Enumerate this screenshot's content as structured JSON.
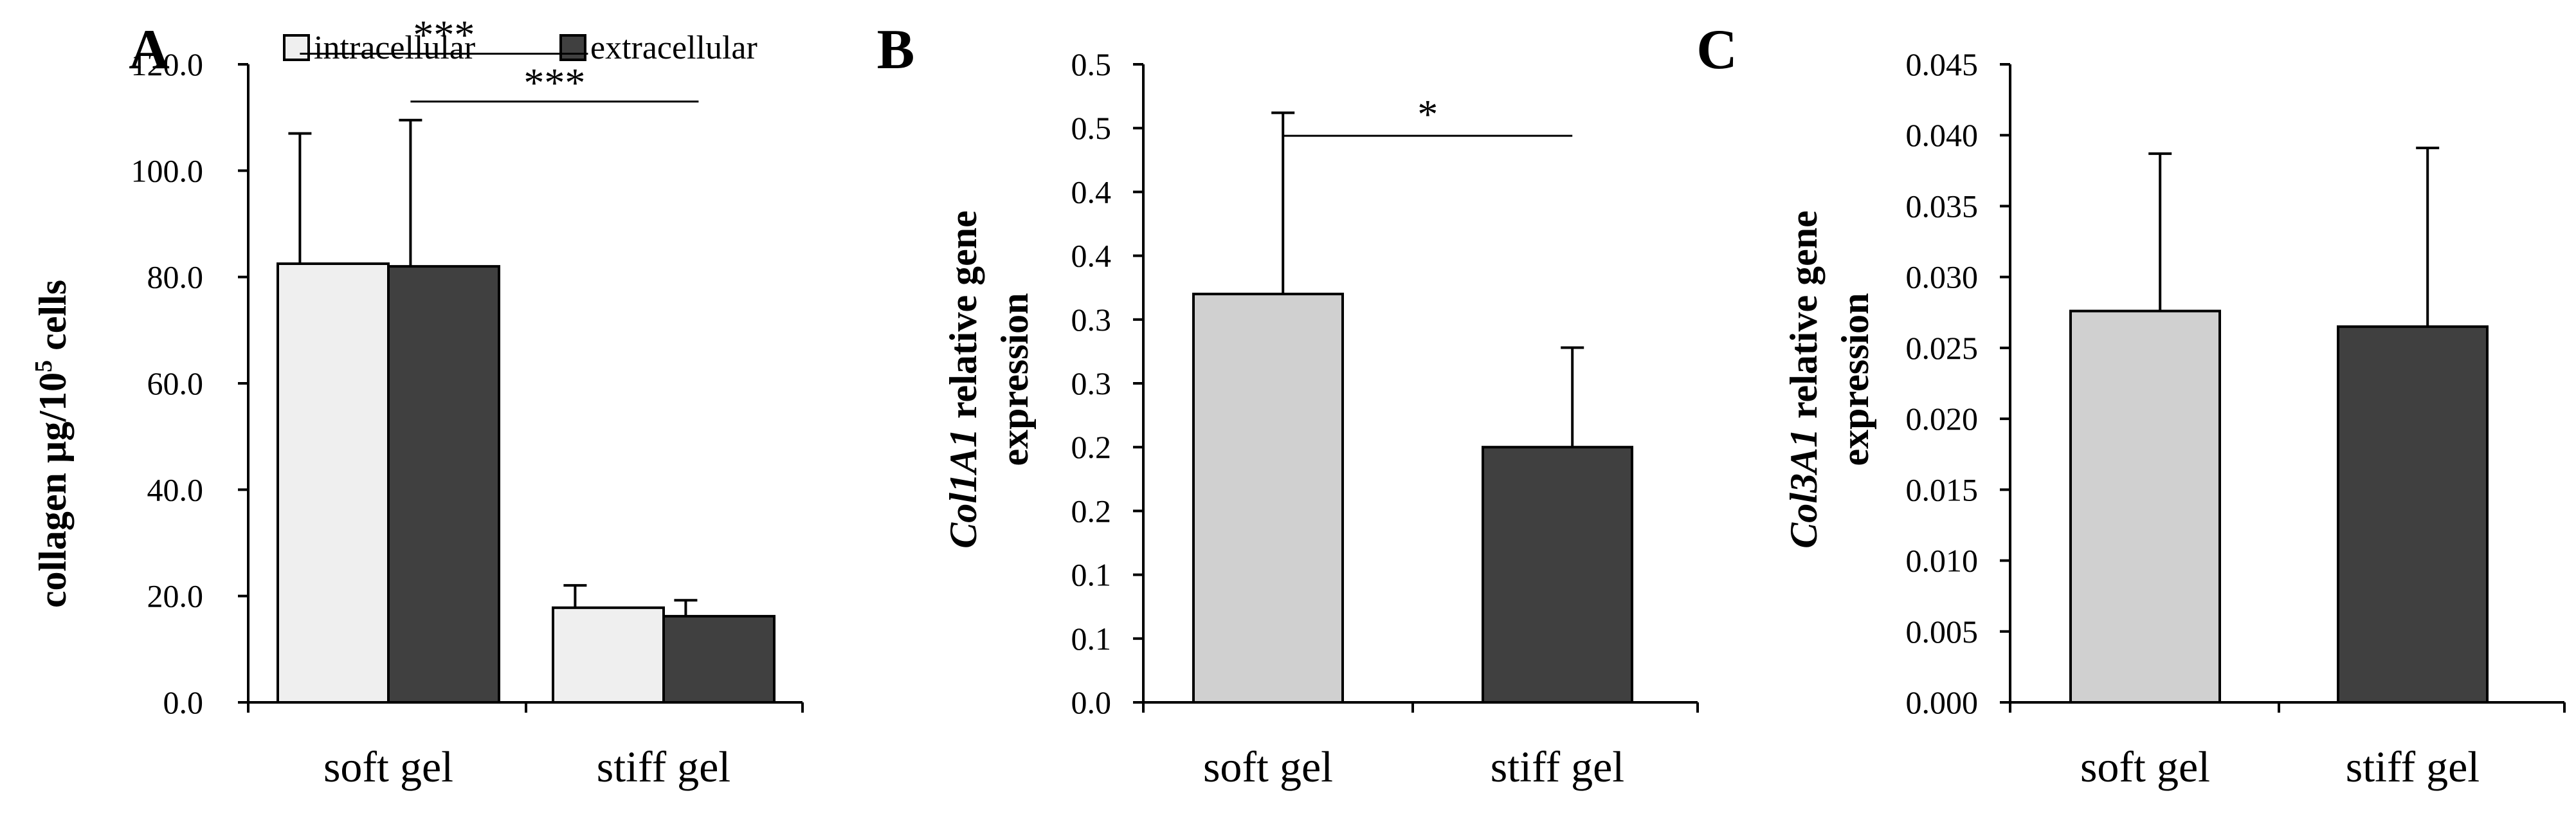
{
  "colors": {
    "intracellular": "#efefef",
    "extracellular": "#404040",
    "soft_bar": "#d0d0d0",
    "stiff_bar": "#404040"
  },
  "chart_data": [
    {
      "panel_label": "A",
      "type": "bar",
      "categories": [
        "soft gel",
        "stiff gel"
      ],
      "series": [
        {
          "name": "intracellular",
          "values": [
            82.5,
            17.8
          ],
          "errors": [
            24.5,
            4.2
          ]
        },
        {
          "name": "extracellular",
          "values": [
            82.0,
            16.2
          ],
          "errors": [
            27.5,
            3.0
          ]
        }
      ],
      "ylabel_main": "collagen µg/10",
      "ylabel_sup": "5",
      "ylabel_tail": " cells",
      "ylim": [
        0,
        120
      ],
      "ticks": [
        "0.0",
        "20.0",
        "40.0",
        "60.0",
        "80.0",
        "100.0",
        "120.0"
      ],
      "tick_values": [
        0,
        20,
        40,
        60,
        80,
        100,
        120
      ],
      "legend": [
        "intracellular",
        "extracellular"
      ],
      "significance": [
        {
          "label": "***",
          "from_series": 0,
          "to_series": 0,
          "y": 122
        },
        {
          "label": "***",
          "from_series": 1,
          "to_series": 1,
          "y": 113
        }
      ]
    },
    {
      "panel_label": "B",
      "type": "bar",
      "categories": [
        "soft gel",
        "stiff gel"
      ],
      "values": [
        0.32,
        0.2
      ],
      "errors": [
        0.142,
        0.078
      ],
      "ylabel_italic": "Col1A1",
      "ylabel_rest": " relative gene",
      "ylabel_line2": "expression",
      "ylim": [
        0,
        0.5
      ],
      "ticks": [
        "0.0",
        "0.1",
        "0.1",
        "0.2",
        "0.2",
        "0.3",
        "0.3",
        "0.4",
        "0.4",
        "0.5",
        "0.5"
      ],
      "tick_values": [
        0,
        0.05,
        0.1,
        0.15,
        0.2,
        0.25,
        0.3,
        0.35,
        0.4,
        0.45,
        0.5
      ],
      "significance": [
        {
          "label": "*",
          "y": 0.444
        }
      ]
    },
    {
      "panel_label": "C",
      "type": "bar",
      "categories": [
        "soft gel",
        "stiff gel"
      ],
      "values": [
        0.0276,
        0.0265
      ],
      "errors": [
        0.0111,
        0.0126
      ],
      "ylabel_italic": "Col3A1",
      "ylabel_rest": " relative gene",
      "ylabel_line2": "expression",
      "ylim": [
        0,
        0.045
      ],
      "ticks": [
        "0.000",
        "0.005",
        "0.010",
        "0.015",
        "0.020",
        "0.025",
        "0.030",
        "0.035",
        "0.040",
        "0.045"
      ],
      "tick_values": [
        0,
        0.005,
        0.01,
        0.015,
        0.02,
        0.025,
        0.03,
        0.035,
        0.04,
        0.045
      ]
    }
  ]
}
